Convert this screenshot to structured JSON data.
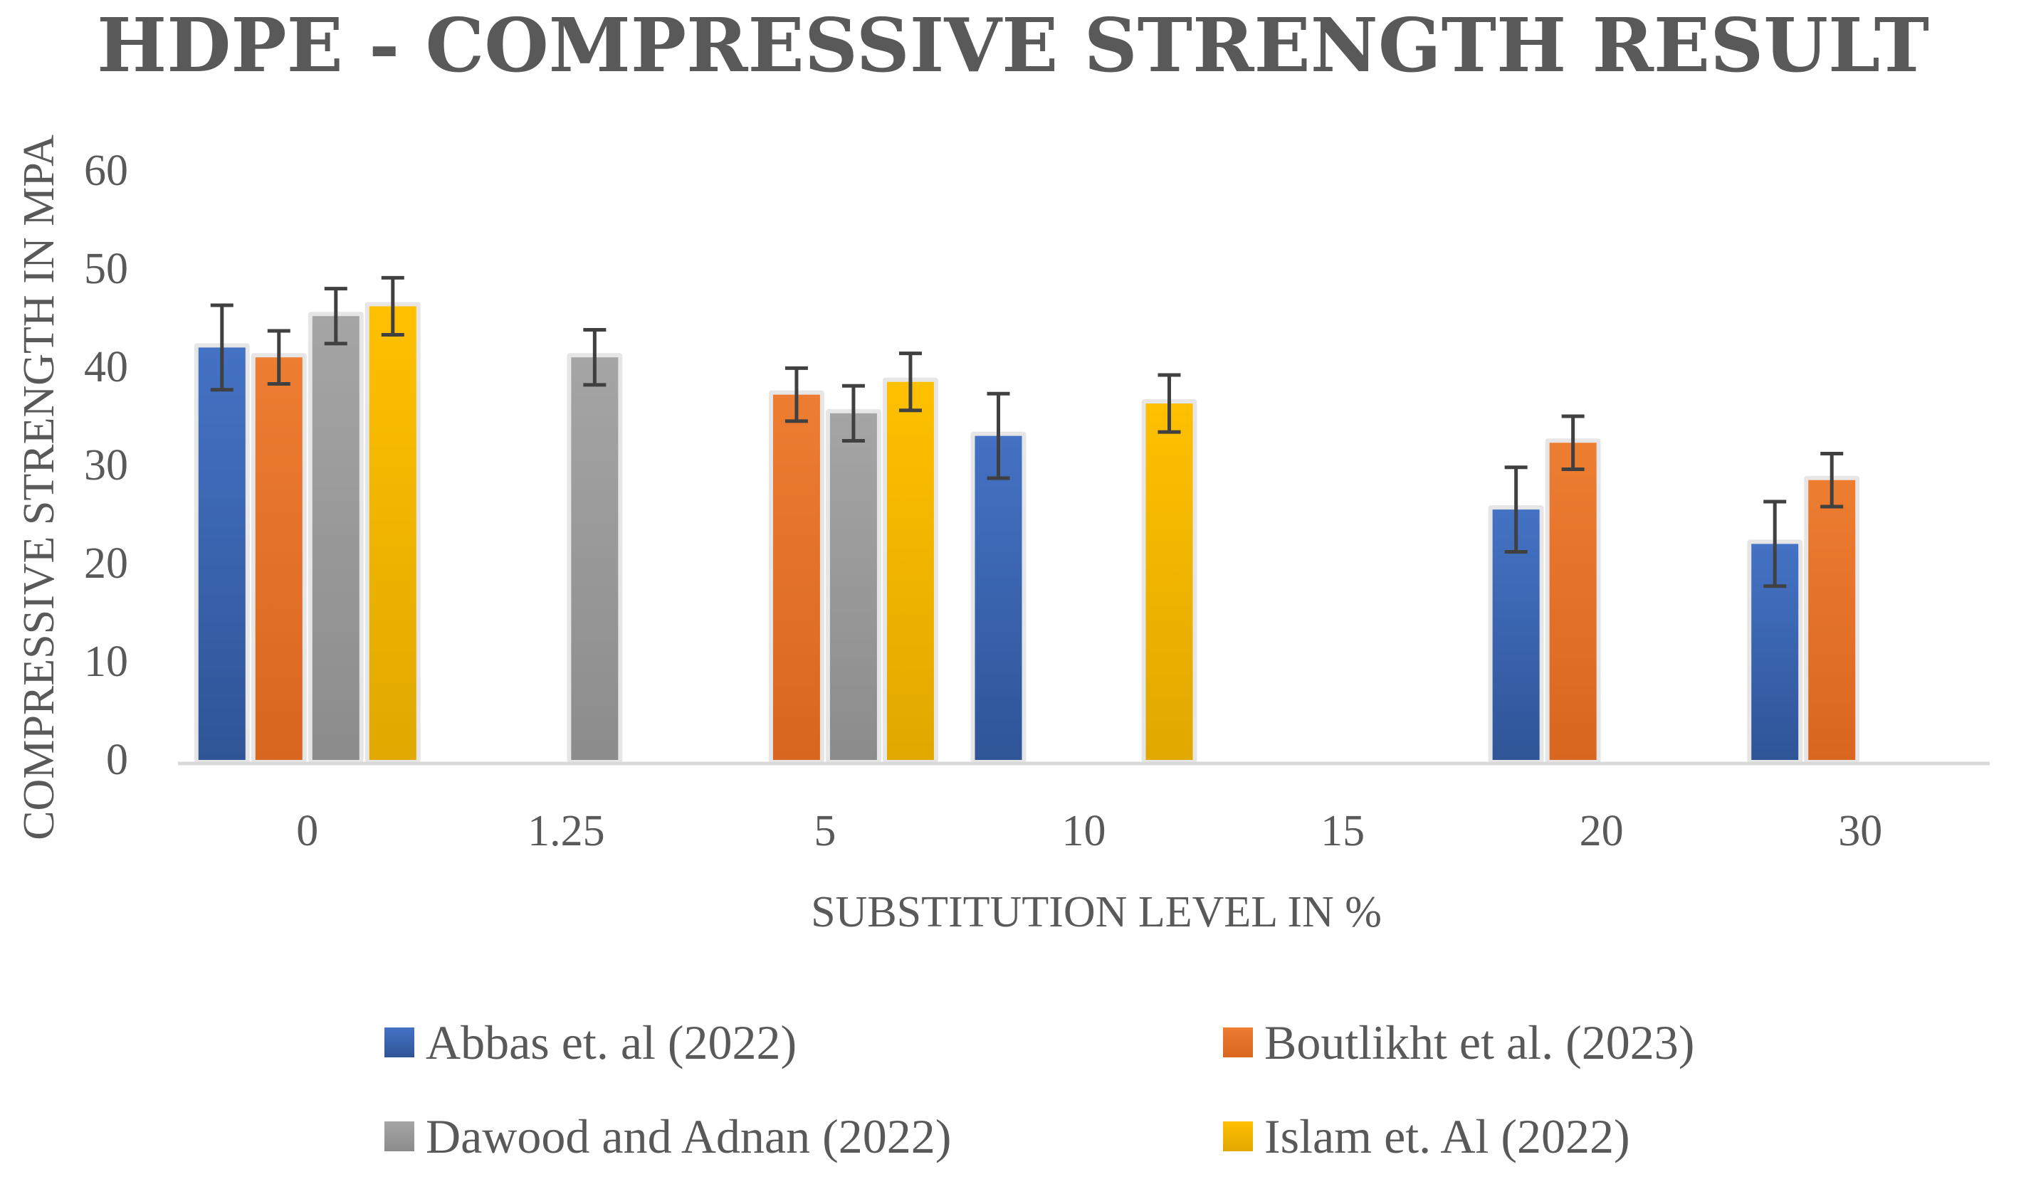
{
  "chart_data": {
    "type": "bar",
    "title": "HDPE - COMPRESSIVE STRENGTH RESULT",
    "xlabel": "SUBSTITUTION LEVEL IN %",
    "ylabel": "COMPRESSIVE STRENGTH IN MPA",
    "categories": [
      "0",
      "1.25",
      "5",
      "10",
      "15",
      "20",
      "30"
    ],
    "ylim": [
      0,
      60
    ],
    "yticks": [
      0,
      10,
      20,
      30,
      40,
      50,
      60
    ],
    "grid": false,
    "legend_position": "bottom",
    "series": [
      {
        "name": "Abbas et. al (2022)",
        "color": "#4472C4",
        "color_dark": "#2F5597",
        "values": [
          42,
          null,
          null,
          33,
          null,
          25.5,
          22
        ],
        "errors": [
          4.3,
          null,
          null,
          4.3,
          null,
          4.3,
          4.3
        ]
      },
      {
        "name": "Boutlikht et al. (2023)",
        "color": "#ED7D31",
        "color_dark": "#D9661F",
        "values": [
          41,
          null,
          37.2,
          null,
          null,
          32.3,
          28.5
        ],
        "errors": [
          2.7,
          null,
          2.7,
          null,
          null,
          2.7,
          2.7
        ]
      },
      {
        "name": "Dawood and Adnan (2022)",
        "color": "#A5A5A5",
        "color_dark": "#8C8C8C",
        "values": [
          45.2,
          41,
          35.3,
          null,
          null,
          null,
          null
        ],
        "errors": [
          2.8,
          2.8,
          2.8,
          null,
          null,
          null,
          null
        ]
      },
      {
        "name": "Islam et. Al (2022)",
        "color": "#FFC000",
        "color_dark": "#E0A800",
        "values": [
          46.2,
          null,
          38.5,
          36.3,
          null,
          null,
          null
        ],
        "errors": [
          2.9,
          null,
          2.9,
          2.9,
          null,
          null,
          null
        ]
      }
    ]
  }
}
